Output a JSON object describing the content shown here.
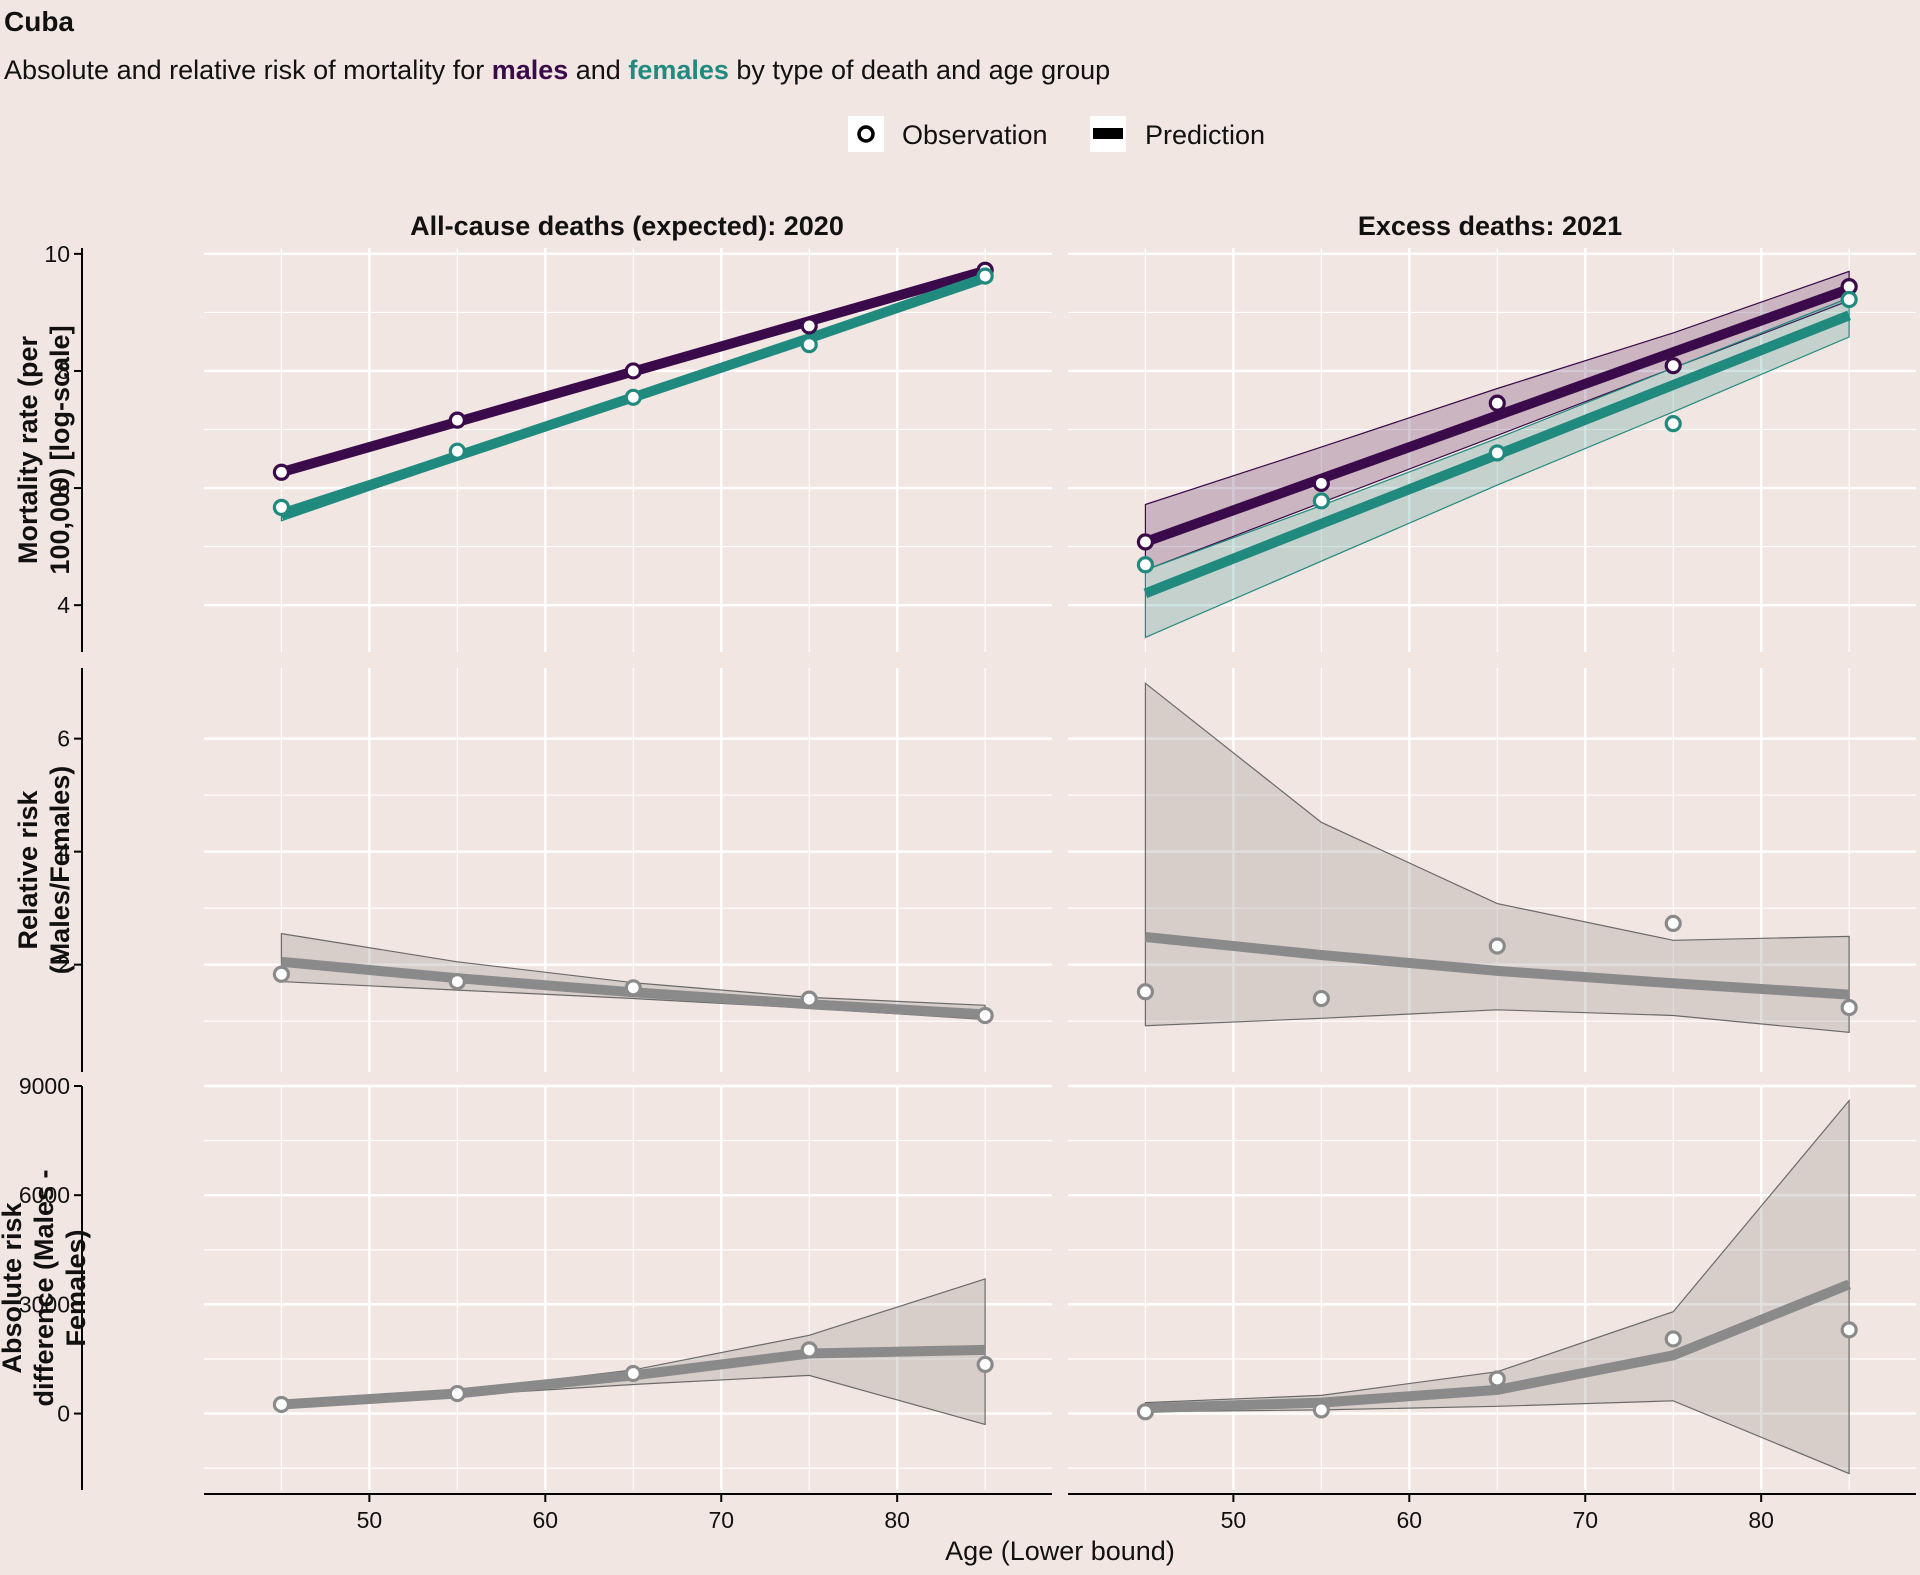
{
  "title": "Cuba",
  "subtitle": {
    "before": "Absolute and relative risk of mortality for ",
    "males": "males",
    "middle": " and ",
    "females": "females",
    "after": " by type of death and age group"
  },
  "colors": {
    "background": "#f2e6e2",
    "males": "#3b0a4a",
    "females": "#218a7f",
    "neutral": "#8a8a8a",
    "ribbon_neutral": "#d4cbc8",
    "grid": "#ffffff"
  },
  "legend": {
    "observation": "Observation",
    "prediction": "Prediction",
    "placement": "top-center"
  },
  "x_axis": {
    "label": "Age (Lower bound)",
    "ticks": [
      50,
      60,
      70,
      80
    ],
    "range": [
      40.6,
      88.8
    ]
  },
  "columns": [
    "All-cause deaths (expected): 2020",
    "Excess deaths: 2021"
  ],
  "rows": [
    {
      "ylabel_lines": [
        "Mortality rate (per",
        "100,000) [log-scale]"
      ],
      "ylim": [
        3.2,
        10.1
      ],
      "yticks": [
        4,
        6,
        8,
        10
      ],
      "ytick_labels": [
        "4",
        "6",
        "8",
        "10"
      ]
    },
    {
      "ylabel_lines": [
        "Relative risk",
        "(Males/Females)"
      ],
      "ylim": [
        0.1,
        7.25
      ],
      "yticks": [
        2,
        4,
        6
      ],
      "ytick_labels": [
        "2",
        "4",
        "6"
      ]
    },
    {
      "ylabel_lines": [
        "Absolute risk",
        "difference (Males -",
        "Females)"
      ],
      "ylim": [
        -2100,
        9000
      ],
      "yticks": [
        0,
        3000,
        6000,
        9000
      ],
      "ytick_labels": [
        "0",
        "3000",
        "6000",
        "9000"
      ]
    }
  ],
  "chart_data": {
    "type": "line",
    "grid": true,
    "x": [
      45,
      55,
      65,
      75,
      85
    ],
    "panels": [
      {
        "row": 0,
        "col": 0,
        "series": [
          {
            "name": "males",
            "observed": [
              6.27,
              7.16,
              8.0,
              8.77,
              9.72
            ],
            "predicted": [
              6.27,
              7.13,
              7.99,
              8.85,
              9.71
            ],
            "lower": [
              6.22,
              7.08,
              7.94,
              8.8,
              9.66
            ],
            "upper": [
              6.33,
              7.19,
              8.05,
              8.91,
              9.77
            ]
          },
          {
            "name": "females",
            "observed": [
              5.67,
              6.63,
              7.55,
              8.45,
              9.62
            ],
            "predicted": [
              5.54,
              6.55,
              7.55,
              8.56,
              9.59
            ],
            "lower": [
              5.44,
              6.48,
              7.5,
              8.5,
              9.55
            ],
            "upper": [
              5.64,
              6.62,
              7.6,
              8.62,
              9.63
            ]
          }
        ]
      },
      {
        "row": 0,
        "col": 1,
        "series": [
          {
            "name": "males",
            "observed": [
              5.08,
              6.08,
              7.45,
              8.09,
              9.44
            ],
            "predicted": [
              5.08,
              6.16,
              7.24,
              8.32,
              9.4
            ],
            "lower": [
              4.6,
              5.75,
              6.9,
              8.05,
              9.2
            ],
            "upper": [
              5.72,
              6.7,
              7.7,
              8.65,
              9.7
            ]
          },
          {
            "name": "females",
            "observed": [
              4.69,
              5.78,
              6.6,
              7.1,
              9.22
            ],
            "predicted": [
              4.2,
              5.39,
              6.57,
              7.76,
              8.95
            ],
            "lower": [
              3.45,
              4.75,
              6.05,
              7.3,
              8.58
            ],
            "upper": [
              4.6,
              5.7,
              6.85,
              8.05,
              9.25
            ]
          }
        ]
      },
      {
        "row": 1,
        "col": 0,
        "series": [
          {
            "name": "Relative risk",
            "observed": [
              1.83,
              1.7,
              1.59,
              1.39,
              1.1
            ],
            "predicted": [
              2.05,
              1.76,
              1.51,
              1.3,
              1.12
            ],
            "lower": [
              1.7,
              1.55,
              1.4,
              1.23,
              1.03
            ],
            "upper": [
              2.55,
              2.05,
              1.68,
              1.42,
              1.28
            ]
          }
        ]
      },
      {
        "row": 1,
        "col": 1,
        "series": [
          {
            "name": "Relative risk",
            "observed": [
              1.52,
              1.4,
              2.33,
              2.73,
              1.24
            ],
            "predicted": [
              2.49,
              2.17,
              1.89,
              1.67,
              1.47
            ],
            "lower": [
              0.92,
              1.05,
              1.2,
              1.1,
              0.8
            ],
            "upper": [
              6.98,
              4.52,
              3.08,
              2.43,
              2.5
            ]
          }
        ]
      },
      {
        "row": 2,
        "col": 0,
        "series": [
          {
            "name": "Absolute risk difference",
            "observed": [
              250,
              550,
              1100,
              1750,
              1350
            ],
            "predicted": [
              250,
              550,
              1050,
              1650,
              1750
            ],
            "lower": [
              230,
              500,
              800,
              1050,
              -300
            ],
            "upper": [
              300,
              620,
              1200,
              2150,
              3700
            ]
          }
        ]
      },
      {
        "row": 2,
        "col": 1,
        "series": [
          {
            "name": "Absolute risk difference",
            "observed": [
              50,
              100,
              950,
              2050,
              2300
            ],
            "predicted": [
              150,
              300,
              650,
              1600,
              3550
            ],
            "lower": [
              50,
              100,
              200,
              350,
              -1650
            ],
            "upper": [
              300,
              500,
              1150,
              2800,
              8600
            ]
          }
        ]
      }
    ]
  }
}
